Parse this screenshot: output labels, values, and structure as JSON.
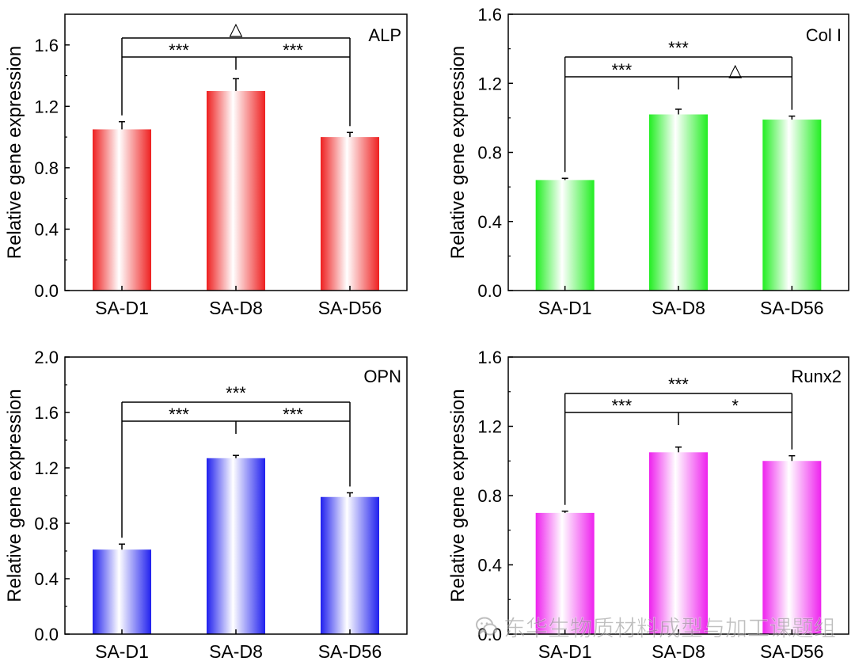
{
  "watermark": {
    "text": "东华生物质材料成型与加工课题组",
    "icon": "wechat-icon"
  },
  "chart_data": [
    {
      "type": "bar",
      "title": "ALP",
      "ylabel": "Relative gene expression",
      "xlabel": "",
      "categories": [
        "SA-D1",
        "SA-D8",
        "SA-D56"
      ],
      "values": [
        1.05,
        1.3,
        1.0
      ],
      "errors": [
        0.05,
        0.08,
        0.03
      ],
      "ylim": [
        0,
        1.8
      ],
      "yticks": [
        0.0,
        0.4,
        0.8,
        1.2,
        1.6
      ],
      "ytick_labels": [
        "0.0",
        "0.4",
        "0.8",
        "1.2",
        "1.6"
      ],
      "color": "#ee2020",
      "significance": {
        "inner_left": "***",
        "inner_right": "***",
        "outer": "△"
      }
    },
    {
      "type": "bar",
      "title": "Col I",
      "ylabel": "Relative gene expression",
      "xlabel": "",
      "categories": [
        "SA-D1",
        "SA-D8",
        "SA-D56"
      ],
      "values": [
        0.64,
        1.02,
        0.99
      ],
      "errors": [
        0.01,
        0.03,
        0.02
      ],
      "ylim": [
        0,
        1.6
      ],
      "yticks": [
        0.0,
        0.4,
        0.8,
        1.2,
        1.6
      ],
      "ytick_labels": [
        "0.0",
        "0.4",
        "0.8",
        "1.2",
        "1.6"
      ],
      "color": "#22ee22",
      "significance": {
        "inner_left": "***",
        "inner_right": "△",
        "outer": "***"
      }
    },
    {
      "type": "bar",
      "title": "OPN",
      "ylabel": "Relative gene expression",
      "xlabel": "",
      "categories": [
        "SA-D1",
        "SA-D8",
        "SA-D56"
      ],
      "values": [
        0.61,
        1.27,
        0.99
      ],
      "errors": [
        0.04,
        0.02,
        0.03
      ],
      "ylim": [
        0,
        2.0
      ],
      "yticks": [
        0.0,
        0.4,
        0.8,
        1.2,
        1.6,
        2.0
      ],
      "ytick_labels": [
        "0.0",
        "0.4",
        "0.8",
        "1.2",
        "1.6",
        "2.0"
      ],
      "color": "#2020ee",
      "significance": {
        "inner_left": "***",
        "inner_right": "***",
        "outer": "***"
      }
    },
    {
      "type": "bar",
      "title": "Runx2",
      "ylabel": "Relative gene expression",
      "xlabel": "",
      "categories": [
        "SA-D1",
        "SA-D8",
        "SA-D56"
      ],
      "values": [
        0.7,
        1.05,
        1.0
      ],
      "errors": [
        0.01,
        0.03,
        0.03
      ],
      "ylim": [
        0,
        1.6
      ],
      "yticks": [
        0.0,
        0.4,
        0.8,
        1.2,
        1.6
      ],
      "ytick_labels": [
        "0.0",
        "0.4",
        "0.8",
        "1.2",
        "1.6"
      ],
      "color": "#ee22ee",
      "significance": {
        "inner_left": "***",
        "inner_right": "*",
        "outer": "***"
      }
    }
  ]
}
